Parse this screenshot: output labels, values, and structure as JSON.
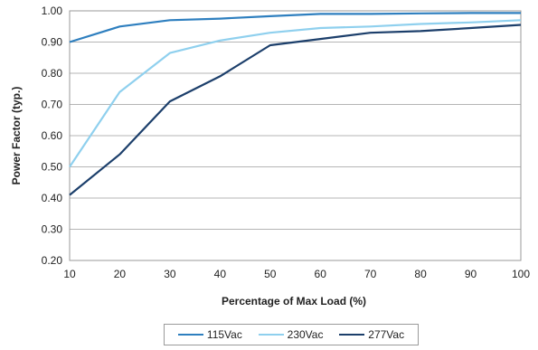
{
  "chart_data": {
    "type": "line",
    "title": "",
    "xlabel": "Percentage of Max Load (%)",
    "ylabel": "Power Factor (typ.)",
    "xlim": [
      10,
      100
    ],
    "ylim": [
      0.2,
      1.0
    ],
    "x_ticks": [
      "10",
      "20",
      "30",
      "40",
      "50",
      "60",
      "70",
      "80",
      "90",
      "100"
    ],
    "y_ticks": [
      "0.20",
      "0.30",
      "0.40",
      "0.50",
      "0.60",
      "0.70",
      "0.80",
      "0.90",
      "1.00"
    ],
    "grid": "horizontal",
    "legend_position": "bottom",
    "x": [
      10,
      20,
      30,
      40,
      50,
      60,
      70,
      80,
      90,
      100
    ],
    "series": [
      {
        "name": "115Vac",
        "color": "#2e7fbf",
        "values": [
          0.9,
          0.95,
          0.97,
          0.975,
          0.983,
          0.99,
          0.99,
          0.992,
          0.993,
          0.993
        ]
      },
      {
        "name": "230Vac",
        "color": "#8fd0ee",
        "values": [
          0.5,
          0.74,
          0.865,
          0.905,
          0.93,
          0.945,
          0.95,
          0.958,
          0.963,
          0.97
        ]
      },
      {
        "name": "277Vac",
        "color": "#1c3f6b",
        "values": [
          0.41,
          0.54,
          0.71,
          0.79,
          0.89,
          0.91,
          0.93,
          0.935,
          0.945,
          0.955
        ]
      }
    ]
  }
}
